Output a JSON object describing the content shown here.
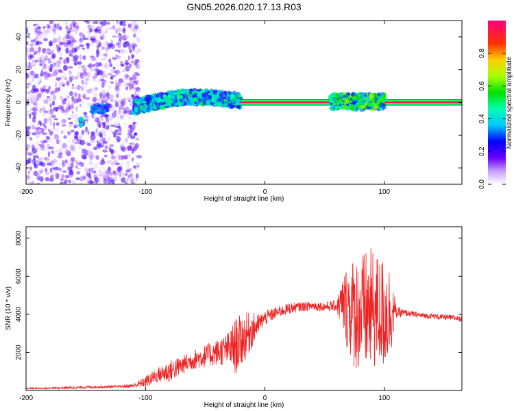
{
  "figure_title": "GN05.2026.020.17.13.R03",
  "colors": {
    "snr_line": "#ee2222",
    "frame": "#000000",
    "background": "#ffffff"
  },
  "chart_data": [
    {
      "type": "heatmap",
      "name": "spectrogram",
      "title": "GN05.2026.020.17.13.R03",
      "xlabel": "Height of straight line (km)",
      "ylabel": "Frequency (Hz)",
      "xlim": [
        -200,
        165
      ],
      "ylim": [
        -50,
        50
      ],
      "xticks": [
        -200,
        -100,
        0,
        100
      ],
      "yticks": [
        -40,
        -20,
        0,
        20,
        40
      ],
      "colorbar": {
        "label": "Normalized spectral amplitude",
        "range": [
          0,
          1
        ],
        "ticks": [
          "0.0",
          "0.2",
          "0.4",
          "0.6",
          "0.8"
        ],
        "tick_values": [
          0.0,
          0.2,
          0.4,
          0.6,
          0.8
        ]
      },
      "regions": [
        {
          "label": "diffuse noise",
          "x": [
            -200,
            -105
          ],
          "freq": [
            -50,
            50
          ],
          "amplitude": 0.1
        },
        {
          "label": "blob",
          "x": [
            -155,
            -152
          ],
          "freq": [
            -14,
            -10
          ],
          "amplitude": 0.35
        },
        {
          "label": "blob",
          "x": [
            -145,
            -132
          ],
          "freq": [
            -6,
            -2
          ],
          "amplitude": 0.3
        },
        {
          "label": "drifting signal",
          "x": [
            -110,
            -20
          ],
          "freq": [
            -10,
            5
          ],
          "amplitude": 0.4
        },
        {
          "label": "steady tone",
          "x": [
            -20,
            165
          ],
          "freq": [
            -1,
            1
          ],
          "amplitude": 0.95
        },
        {
          "label": "modulated tone",
          "x": [
            55,
            100
          ],
          "freq": [
            -4,
            5
          ],
          "amplitude": 0.5
        }
      ]
    },
    {
      "type": "line",
      "name": "snr",
      "xlabel": "Height of straight line (km)",
      "ylabel": "SNR (10 * v/v)",
      "xlim": [
        -200,
        165
      ],
      "ylim": [
        0,
        8600
      ],
      "xticks": [
        -200,
        -100,
        0,
        100
      ],
      "yticks": [
        2000,
        4000,
        6000,
        8000
      ],
      "series": [
        {
          "name": "SNR",
          "color": "#ee2222",
          "x": [
            -200,
            -180,
            -160,
            -140,
            -120,
            -110,
            -100,
            -90,
            -80,
            -70,
            -60,
            -50,
            -40,
            -30,
            -25,
            -20,
            -15,
            -10,
            -5,
            0,
            10,
            20,
            30,
            40,
            50,
            60,
            65,
            70,
            75,
            80,
            85,
            90,
            95,
            100,
            105,
            110,
            120,
            130,
            140,
            150,
            160,
            165
          ],
          "values": [
            100,
            120,
            150,
            180,
            210,
            250,
            450,
            800,
            1000,
            1300,
            1600,
            1800,
            2000,
            2200,
            2300,
            2600,
            2900,
            3200,
            3500,
            3800,
            4100,
            4300,
            4400,
            4450,
            4400,
            4450,
            4500,
            4400,
            4100,
            4000,
            4100,
            4200,
            4150,
            4000,
            4200,
            4100,
            4050,
            3950,
            3900,
            3850,
            3800,
            3750
          ],
          "noise_amplitude": [
            40,
            40,
            80,
            60,
            60,
            120,
            300,
            400,
            600,
            500,
            500,
            600,
            700,
            900,
            1500,
            1400,
            1200,
            900,
            500,
            400,
            300,
            300,
            250,
            250,
            250,
            300,
            1500,
            2500,
            3000,
            3200,
            3300,
            3300,
            3000,
            3000,
            2500,
            300,
            150,
            150,
            150,
            150,
            150,
            150
          ]
        }
      ]
    }
  ]
}
